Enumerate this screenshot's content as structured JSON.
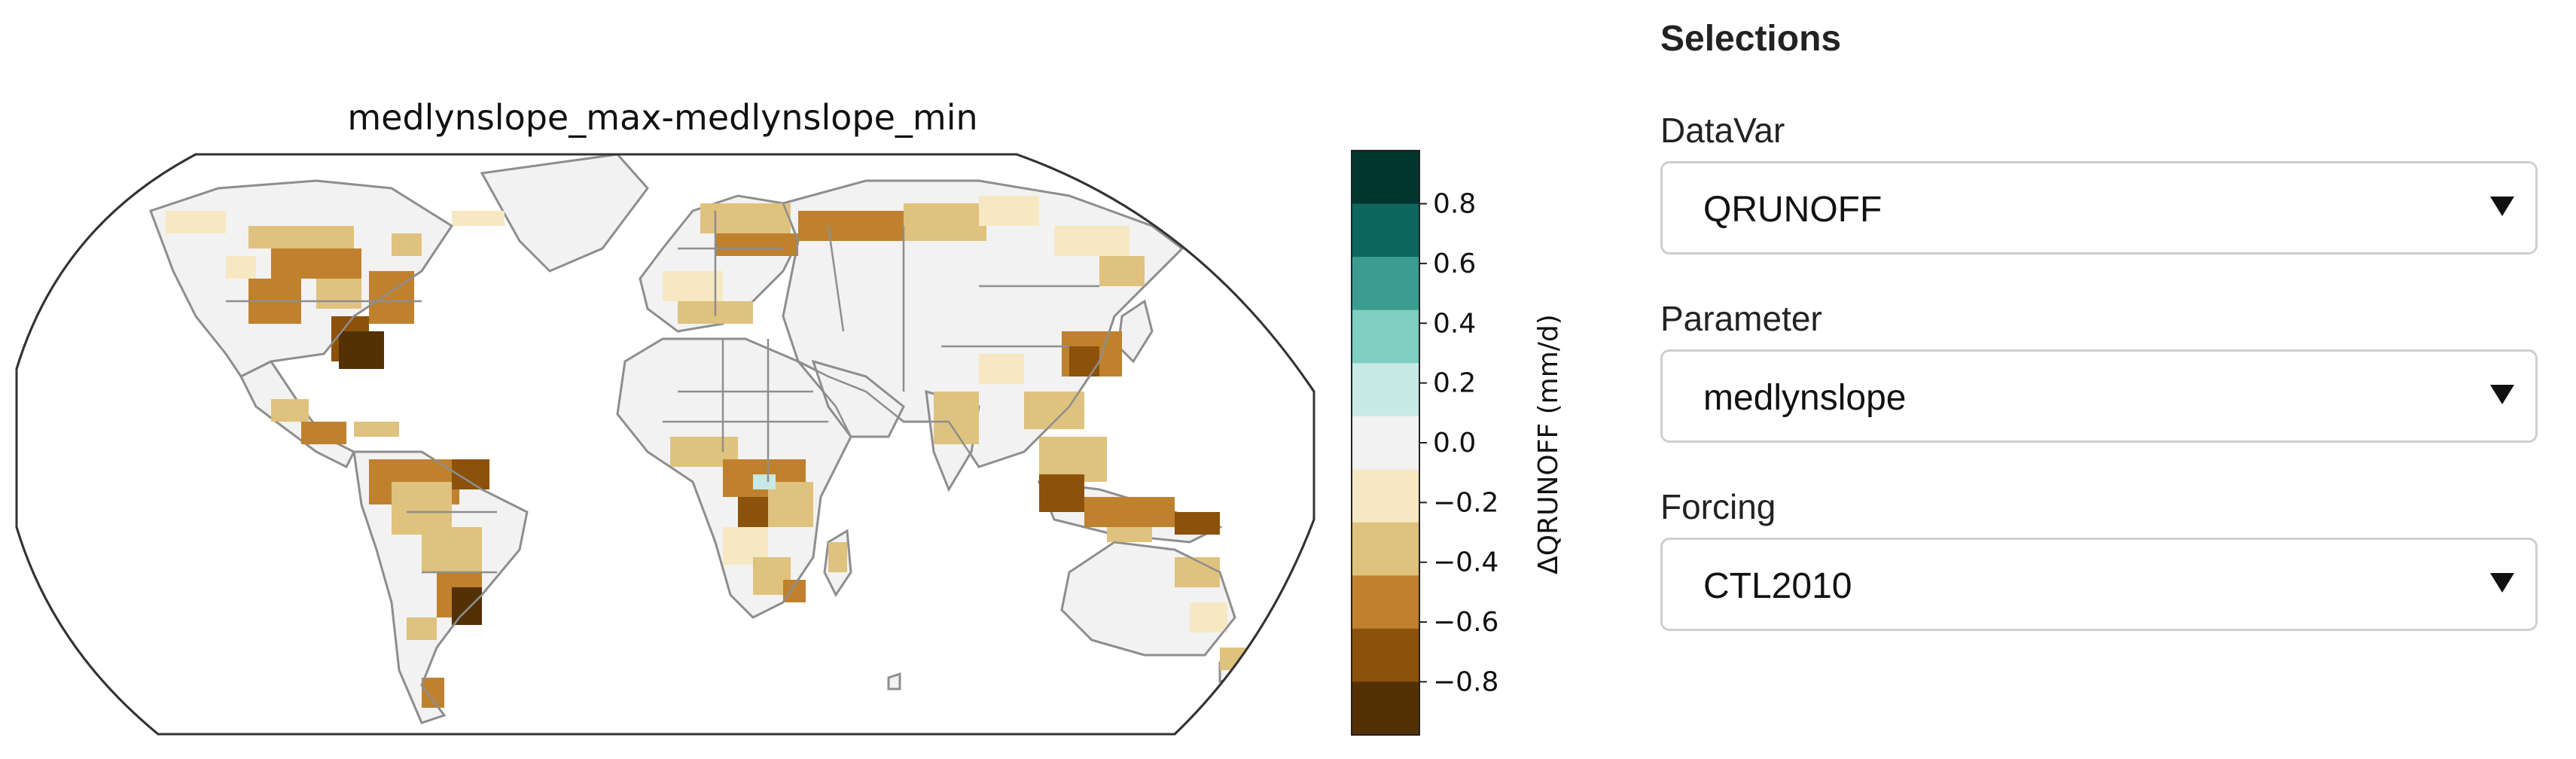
{
  "map": {
    "title": "medlynslope_max-medlynslope_min",
    "colorbar": {
      "label": "ΔQRUNOFF (mm/d)",
      "ticks": [
        "0.8",
        "0.6",
        "0.4",
        "0.2",
        "0.0",
        "−0.2",
        "−0.4",
        "−0.6",
        "−0.8"
      ],
      "colors": [
        "#01352f",
        "#0e665c",
        "#3a9d90",
        "#80cdc1",
        "#c7eae5",
        "#f2f2f2",
        "#f6e8c3",
        "#dfc27d",
        "#bf812d",
        "#8c510a",
        "#543005"
      ]
    },
    "land_color": "#f2f2f2",
    "border_color": "#8e8e8e"
  },
  "selections": {
    "heading": "Selections",
    "fields": [
      {
        "label": "DataVar",
        "value": "QRUNOFF"
      },
      {
        "label": "Parameter",
        "value": "medlynslope"
      },
      {
        "label": "Forcing",
        "value": "CTL2010"
      }
    ]
  }
}
